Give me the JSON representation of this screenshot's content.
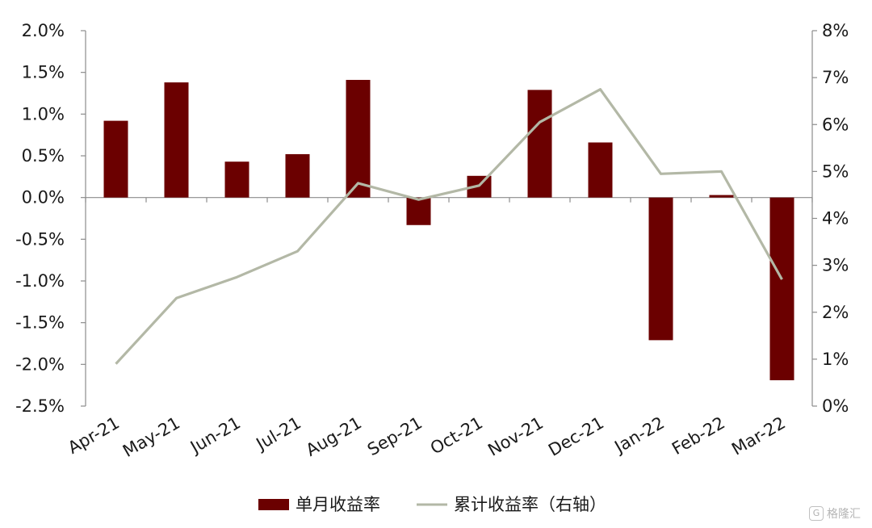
{
  "chart_data": {
    "type": "bar+line",
    "categories": [
      "Apr-21",
      "May-21",
      "Jun-21",
      "Jul-21",
      "Aug-21",
      "Sep-21",
      "Oct-21",
      "Nov-21",
      "Dec-21",
      "Jan-22",
      "Feb-22",
      "Mar-22"
    ],
    "series": [
      {
        "name": "单月收益率",
        "type": "bar",
        "axis": "left",
        "color": "#6b0000",
        "values": [
          0.92,
          1.38,
          0.43,
          0.52,
          1.41,
          -0.33,
          0.26,
          1.29,
          0.66,
          -1.71,
          0.03,
          -2.19
        ]
      },
      {
        "name": "累计收益率（右轴）",
        "type": "line",
        "axis": "right",
        "color": "#b3b8a6",
        "values": [
          0.9,
          2.3,
          2.75,
          3.3,
          4.75,
          4.4,
          4.7,
          6.05,
          6.75,
          4.95,
          5.0,
          2.7
        ]
      }
    ],
    "left_axis": {
      "ylim": [
        -2.5,
        2.0
      ],
      "ticks": [
        -2.5,
        -2.0,
        -1.5,
        -1.0,
        -0.5,
        0.0,
        0.5,
        1.0,
        1.5,
        2.0
      ],
      "tick_labels": [
        "-2.5%",
        "-2.0%",
        "-1.5%",
        "-1.0%",
        "-0.5%",
        "0.0%",
        "0.5%",
        "1.0%",
        "1.5%",
        "2.0%"
      ]
    },
    "right_axis": {
      "ylim": [
        0,
        8
      ],
      "ticks": [
        0,
        1,
        2,
        3,
        4,
        5,
        6,
        7,
        8
      ],
      "tick_labels": [
        "0%",
        "1%",
        "2%",
        "3%",
        "4%",
        "5%",
        "6%",
        "7%",
        "8%"
      ]
    },
    "grid": false,
    "legend": {
      "placement": "bottom-center"
    }
  },
  "watermark": {
    "icon": "G",
    "text": "格隆汇"
  }
}
